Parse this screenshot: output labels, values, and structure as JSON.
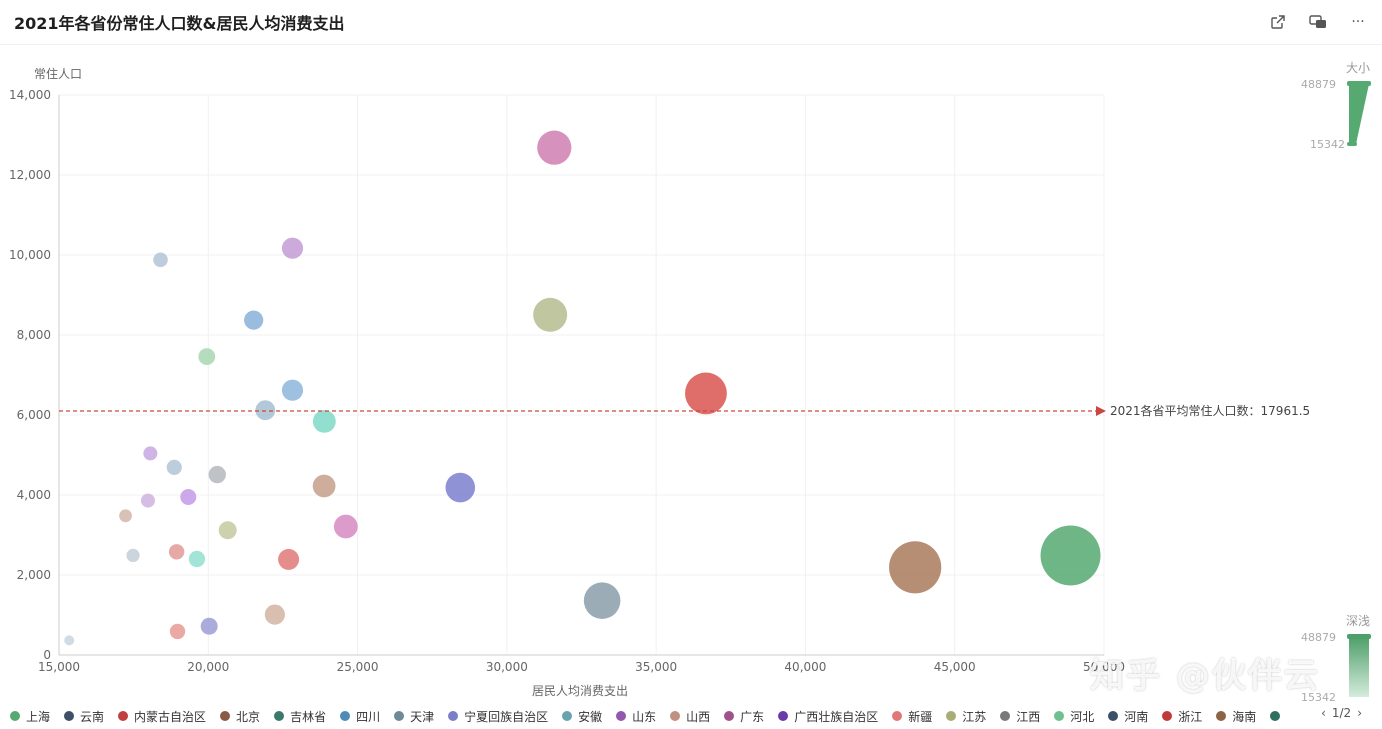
{
  "header": {
    "title": "2021年各省份常住人口数&居民人均消费支出",
    "icons": [
      "external-link-icon",
      "screen-mode-icon",
      "more-icon"
    ],
    "more_glyph": "···"
  },
  "chart_data": {
    "type": "scatter",
    "xlabel": "居民人均消费支出",
    "ylabel": "常住人口",
    "xlim": [
      15000,
      50000
    ],
    "ylim": [
      0,
      14000
    ],
    "x_ticks": [
      "15,000",
      "20,000",
      "25,000",
      "30,000",
      "35,000",
      "40,000",
      "45,000",
      "50,000"
    ],
    "y_ticks": [
      "0",
      "2,000",
      "4,000",
      "6,000",
      "8,000",
      "10,000",
      "12,000",
      "14,000"
    ],
    "grid": true,
    "markline": {
      "y": 6100,
      "label": "2021各省平均常住人口数：17961.5"
    },
    "visual_map": {
      "size": {
        "title": "大小",
        "max": "48879",
        "min": "15342"
      },
      "color": {
        "title": "深浅",
        "max": "48879",
        "min": "15342"
      }
    },
    "points": [
      {
        "x": 48879,
        "y": 2489,
        "color": "#56a971"
      },
      {
        "x": 43675,
        "y": 2192,
        "color": "#a97a5c"
      },
      {
        "x": 36668,
        "y": 6540,
        "color": "#d9534f"
      },
      {
        "x": 33191,
        "y": 1359,
        "color": "#8b9eaa"
      },
      {
        "x": 31589,
        "y": 12684,
        "color": "#cf7fb0"
      },
      {
        "x": 31451,
        "y": 8505,
        "color": "#b5bc8f"
      },
      {
        "x": 28440,
        "y": 4187,
        "color": "#7c7fcf"
      },
      {
        "x": 24606,
        "y": 3212,
        "color": "#d68ac2"
      },
      {
        "x": 23887,
        "y": 5840,
        "color": "#7fd9c7"
      },
      {
        "x": 23879,
        "y": 4225,
        "color": "#c79f8c"
      },
      {
        "x": 22820,
        "y": 10170,
        "color": "#c49bd6"
      },
      {
        "x": 22820,
        "y": 6620,
        "color": "#8eb6dc"
      },
      {
        "x": 22690,
        "y": 2390,
        "color": "#e07878"
      },
      {
        "x": 22230,
        "y": 1010,
        "color": "#d2b4a2"
      },
      {
        "x": 21910,
        "y": 6120,
        "color": "#a6bfd1"
      },
      {
        "x": 21520,
        "y": 8372,
        "color": "#88b2d9"
      },
      {
        "x": 20650,
        "y": 3120,
        "color": "#c4c9a0"
      },
      {
        "x": 20300,
        "y": 4510,
        "color": "#b4b8be"
      },
      {
        "x": 20030,
        "y": 720,
        "color": "#9c9cd6"
      },
      {
        "x": 19950,
        "y": 7460,
        "color": "#a9d6b3"
      },
      {
        "x": 19620,
        "y": 2400,
        "color": "#92e0cf"
      },
      {
        "x": 19330,
        "y": 3950,
        "color": "#c39ae6"
      },
      {
        "x": 18970,
        "y": 590,
        "color": "#e69a94"
      },
      {
        "x": 18940,
        "y": 2580,
        "color": "#e29a96"
      },
      {
        "x": 18860,
        "y": 4690,
        "color": "#b3c4d6"
      },
      {
        "x": 18400,
        "y": 9880,
        "color": "#b3c4d6"
      },
      {
        "x": 18060,
        "y": 5040,
        "color": "#c6a8e0"
      },
      {
        "x": 17980,
        "y": 3860,
        "color": "#cfb2de"
      },
      {
        "x": 17480,
        "y": 2490,
        "color": "#c3ced6"
      },
      {
        "x": 17230,
        "y": 3480,
        "color": "#d4b6aa"
      },
      {
        "x": 15342,
        "y": 366,
        "color": "#c8d5de"
      }
    ]
  },
  "legend": {
    "items": [
      {
        "label": "上海",
        "color": "#56a971"
      },
      {
        "label": "云南",
        "color": "#3f4f66"
      },
      {
        "label": "内蒙古自治区",
        "color": "#c0403f"
      },
      {
        "label": "北京",
        "color": "#8a5a44"
      },
      {
        "label": "吉林省",
        "color": "#3b7a6b"
      },
      {
        "label": "四川",
        "color": "#4f8bb8"
      },
      {
        "label": "天津",
        "color": "#6e8a96"
      },
      {
        "label": "宁夏回族自治区",
        "color": "#7b80c6"
      },
      {
        "label": "安徽",
        "color": "#6aa3b0"
      },
      {
        "label": "山东",
        "color": "#9358ad"
      },
      {
        "label": "山西",
        "color": "#c09080"
      },
      {
        "label": "广东",
        "color": "#a0508a"
      },
      {
        "label": "广西壮族自治区",
        "color": "#6a3aa8"
      },
      {
        "label": "新疆",
        "color": "#e07878"
      },
      {
        "label": "江苏",
        "color": "#a8ad75"
      },
      {
        "label": "江西",
        "color": "#7a7a7a"
      },
      {
        "label": "河北",
        "color": "#6fbf8f"
      },
      {
        "label": "河南",
        "color": "#3a5068"
      },
      {
        "label": "浙江",
        "color": "#c03a3a"
      },
      {
        "label": "海南",
        "color": "#8c6448"
      },
      {
        "label": "",
        "color": "#2f6f5f"
      }
    ],
    "page": "1/2"
  },
  "watermark": "知乎 @伙伴云"
}
